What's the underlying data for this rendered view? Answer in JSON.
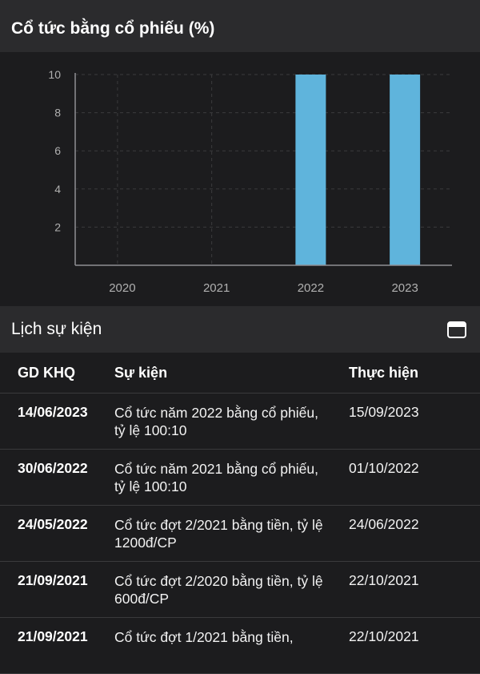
{
  "dividend_section": {
    "title": "Cổ tức bằng cổ phiếu (%)"
  },
  "chart_data": {
    "type": "bar",
    "categories": [
      "2020",
      "2021",
      "2022",
      "2023"
    ],
    "values": [
      0,
      0,
      10,
      10
    ],
    "ylim": [
      0,
      10
    ],
    "yticks": [
      2,
      4,
      6,
      8,
      10
    ],
    "grid": true,
    "bar_color": "#5fb4dc"
  },
  "events_section": {
    "title": "Lịch sự kiện",
    "icon": "calendar-icon"
  },
  "events_table": {
    "headers": {
      "ex_date": "GD KHQ",
      "event": "Sự kiện",
      "exec_date": "Thực hiện"
    },
    "rows": [
      {
        "ex_date": "14/06/2023",
        "event": "Cổ tức năm 2022 bằng cổ phiếu, tỷ lệ 100:10",
        "exec_date": "15/09/2023"
      },
      {
        "ex_date": "30/06/2022",
        "event": "Cổ tức năm 2021 bằng cổ phiếu, tỷ lệ 100:10",
        "exec_date": "01/10/2022"
      },
      {
        "ex_date": "24/05/2022",
        "event": "Cổ tức đợt 2/2021 bằng tiền, tỷ lệ 1200đ/CP",
        "exec_date": "24/06/2022"
      },
      {
        "ex_date": "21/09/2021",
        "event": "Cổ tức đợt 2/2020 bằng tiền, tỷ lệ 600đ/CP",
        "exec_date": "22/10/2021"
      },
      {
        "ex_date": "21/09/2021",
        "event": "Cổ tức đợt 1/2021 bằng tiền,",
        "exec_date": "22/10/2021"
      }
    ]
  }
}
